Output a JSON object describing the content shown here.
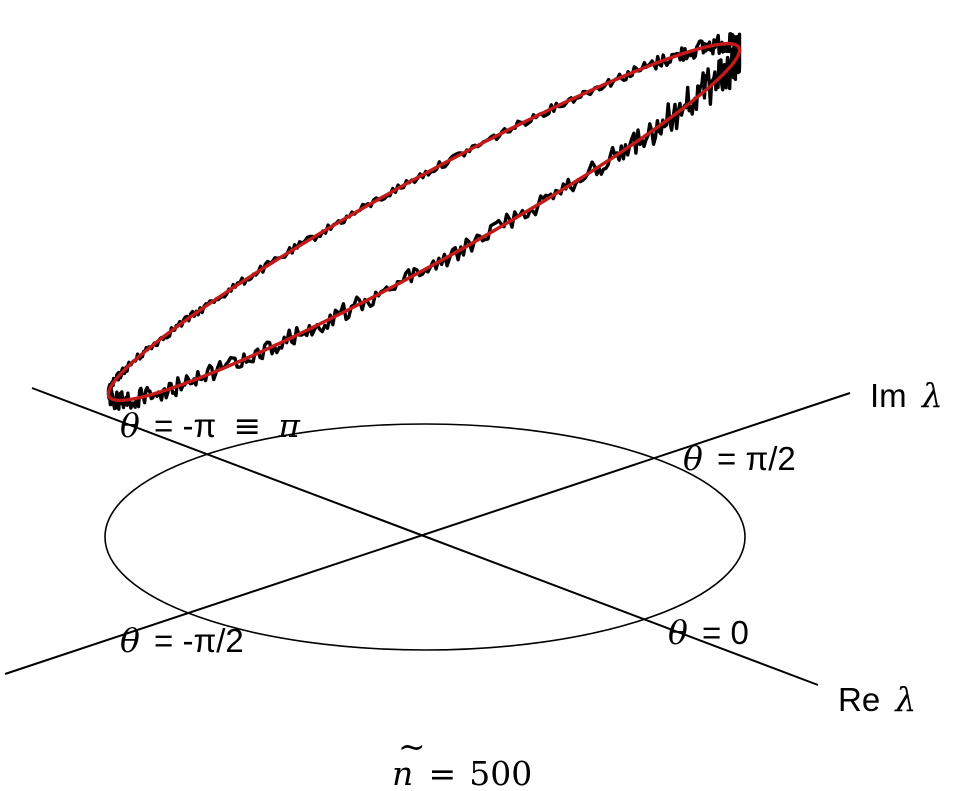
{
  "colors": {
    "background": "#ffffff",
    "axes": "#000000",
    "noisy_trace": "#000000",
    "smooth_trace": "#c41a1a"
  },
  "axes": {
    "imag_label_prefix": "Im",
    "real_label_prefix": "Re",
    "lambda_symbol": "λ"
  },
  "angles": {
    "theta_symbol": "θ",
    "pi_half_label": "= π/2",
    "zero_label": "= 0",
    "minus_pi_half_label": "= -π/2",
    "minus_pi_label": "= -π",
    "equiv_symbol": "≡",
    "pi_symbol": "π"
  },
  "caption": {
    "n_symbol": "n",
    "tilde": "~",
    "equals": "=",
    "value": "500"
  }
}
